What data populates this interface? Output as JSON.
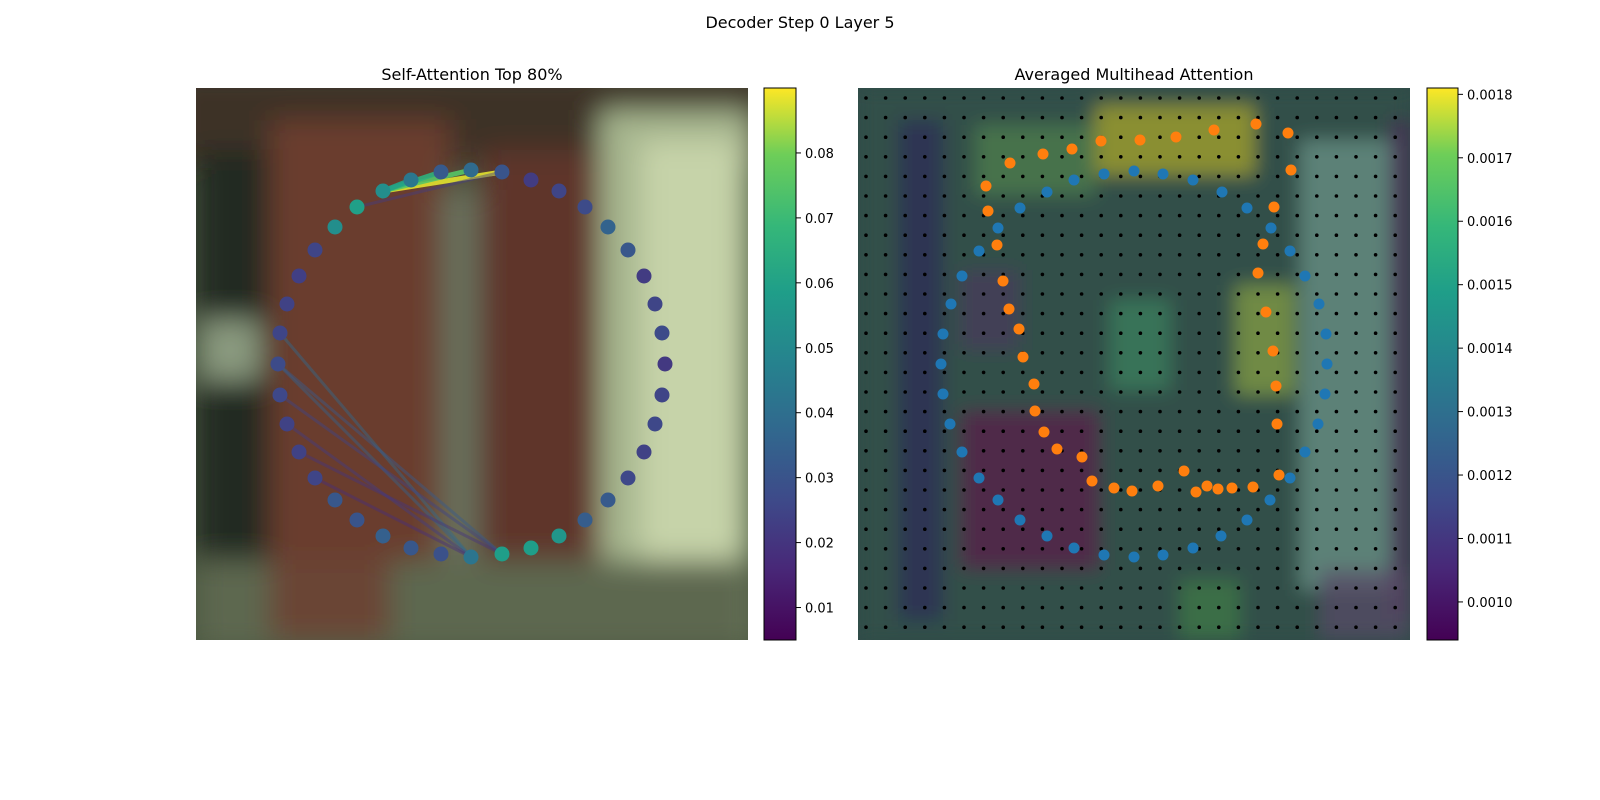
{
  "figure": {
    "title": "Decoder Step 0 Layer 5"
  },
  "chart_data": [
    {
      "type": "scatter",
      "title": "Self-Attention Top 80%",
      "xlabel": "",
      "ylabel": "",
      "background": "blurred photo: dark red-brown wooden frame, pale green/white cloth on right, grey-green surroundings",
      "grid": false,
      "colormap": "viridis",
      "colorbar": {
        "min": 0.005,
        "max": 0.09,
        "ticks": [
          0.01,
          0.02,
          0.03,
          0.04,
          0.05,
          0.06,
          0.07,
          0.08
        ],
        "tick_labels": [
          "0.01",
          "0.02",
          "0.03",
          "0.04",
          "0.05",
          "0.06",
          "0.07",
          "0.08"
        ]
      },
      "points": {
        "x": [
          502,
          531,
          559,
          585,
          608,
          628,
          644,
          655,
          662,
          665,
          662,
          655,
          644,
          628,
          608,
          585,
          559,
          531,
          502,
          471,
          441,
          411,
          383,
          357,
          335,
          315,
          299,
          287,
          280,
          278,
          280,
          287,
          299,
          315,
          335,
          357,
          383,
          411,
          441,
          471
        ],
        "y": [
          172,
          180,
          191,
          207,
          227,
          250,
          276,
          304,
          333,
          364,
          395,
          424,
          452,
          478,
          500,
          520,
          536,
          548,
          554,
          557,
          554,
          548,
          536,
          520,
          500,
          478,
          452,
          424,
          395,
          364,
          333,
          304,
          276,
          250,
          227,
          207,
          191,
          180,
          172,
          170
        ],
        "attention": [
          0.03,
          0.022,
          0.025,
          0.027,
          0.035,
          0.031,
          0.022,
          0.025,
          0.027,
          0.021,
          0.025,
          0.026,
          0.024,
          0.026,
          0.032,
          0.033,
          0.055,
          0.058,
          0.058,
          0.042,
          0.029,
          0.031,
          0.034,
          0.03,
          0.031,
          0.025,
          0.024,
          0.024,
          0.026,
          0.027,
          0.025,
          0.024,
          0.023,
          0.025,
          0.052,
          0.059,
          0.052,
          0.043,
          0.032,
          0.038
        ]
      },
      "edges": [
        {
          "from": 36,
          "to": 0,
          "attention": 0.088
        },
        {
          "from": 36,
          "to": 39,
          "attention": 0.075
        },
        {
          "from": 36,
          "to": 38,
          "attention": 0.066
        },
        {
          "from": 36,
          "to": 37,
          "attention": 0.06
        },
        {
          "from": 0,
          "to": 35,
          "attention": 0.022
        },
        {
          "from": 19,
          "to": 29,
          "attention": 0.035
        },
        {
          "from": 19,
          "to": 30,
          "attention": 0.038
        },
        {
          "from": 18,
          "to": 29,
          "attention": 0.032
        },
        {
          "from": 18,
          "to": 28,
          "attention": 0.025
        },
        {
          "from": 19,
          "to": 27,
          "attention": 0.022
        },
        {
          "from": 18,
          "to": 26,
          "attention": 0.02
        },
        {
          "from": 19,
          "to": 25,
          "attention": 0.018
        }
      ]
    },
    {
      "type": "heatmap",
      "title": "Averaged Multihead Attention",
      "xlabel": "",
      "ylabel": "",
      "colormap": "viridis",
      "grid_points": "black dots on a 28 x 28 lattice",
      "colorbar": {
        "min": 0.00094,
        "max": 0.00181,
        "ticks": [
          0.001,
          0.0011,
          0.0012,
          0.0013,
          0.0014,
          0.0015,
          0.0016,
          0.0017,
          0.0018
        ],
        "tick_labels": [
          "0.0010",
          "0.0011",
          "0.0012",
          "0.0013",
          "0.0014",
          "0.0015",
          "0.0016",
          "0.0017",
          "0.0018"
        ]
      },
      "series": [
        {
          "color": "#1f77b4",
          "x": [
            1074,
            1104,
            1134,
            1163,
            1193,
            1222,
            1247,
            1271,
            1290,
            1305,
            1319,
            1326,
            1327,
            1325,
            1318,
            1305,
            1290,
            1270,
            1247,
            1221,
            1193,
            1163,
            1134,
            1104,
            1074,
            1047,
            1020,
            998,
            979,
            962,
            950,
            943,
            941,
            943,
            951,
            962,
            979,
            998,
            1020,
            1047
          ],
          "y": [
            180,
            174,
            171,
            174,
            180,
            192,
            208,
            228,
            251,
            276,
            304,
            334,
            364,
            394,
            424,
            452,
            478,
            500,
            520,
            536,
            548,
            555,
            557,
            555,
            548,
            536,
            520,
            500,
            478,
            452,
            424,
            394,
            364,
            334,
            304,
            276,
            251,
            228,
            208,
            192
          ]
        },
        {
          "color": "#ff7f0e",
          "x": [
            1101,
            1140,
            1176,
            1214,
            1256,
            1288,
            1291,
            1274,
            1263,
            1258,
            1266,
            1273,
            1276,
            1277,
            1279,
            1253,
            1232,
            1218,
            1207,
            1196,
            1184,
            1158,
            1132,
            1114,
            1092,
            1082,
            1057,
            1044,
            1035,
            1034,
            1023,
            1019,
            1009,
            1003,
            997,
            988,
            986,
            1010,
            1043,
            1072
          ],
          "y": [
            141,
            140,
            137,
            130,
            124,
            133,
            170,
            207,
            244,
            273,
            312,
            351,
            386,
            424,
            475,
            487,
            488,
            489,
            486,
            492,
            471,
            486,
            491,
            488,
            481,
            457,
            449,
            432,
            411,
            384,
            357,
            329,
            309,
            281,
            245,
            211,
            186,
            163,
            154,
            149
          ]
        }
      ]
    }
  ]
}
